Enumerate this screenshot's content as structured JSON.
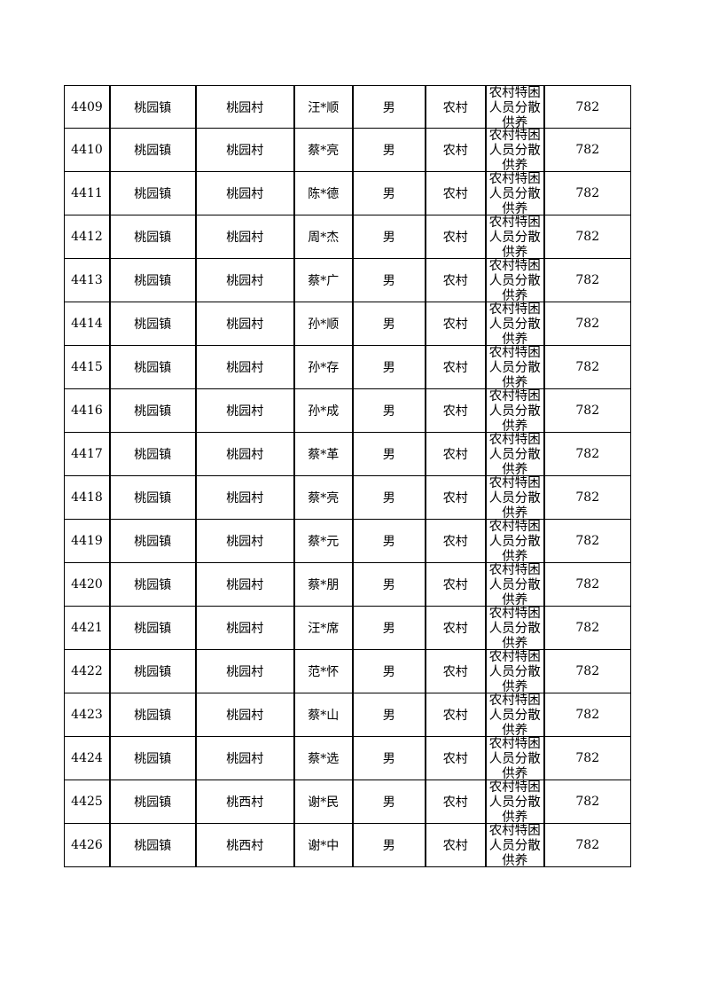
{
  "table": {
    "rows": [
      [
        4409,
        "桃园镇",
        "桃园村",
        "汪*顺",
        "男",
        "农村",
        "农村特困人员分散供养",
        782
      ],
      [
        4410,
        "桃园镇",
        "桃园村",
        "蔡*亮",
        "男",
        "农村",
        "农村特困人员分散供养",
        782
      ],
      [
        4411,
        "桃园镇",
        "桃园村",
        "陈*德",
        "男",
        "农村",
        "农村特困人员分散供养",
        782
      ],
      [
        4412,
        "桃园镇",
        "桃园村",
        "周*杰",
        "男",
        "农村",
        "农村特困人员分散供养",
        782
      ],
      [
        4413,
        "桃园镇",
        "桃园村",
        "蔡*广",
        "男",
        "农村",
        "农村特困人员分散供养",
        782
      ],
      [
        4414,
        "桃园镇",
        "桃园村",
        "孙*顺",
        "男",
        "农村",
        "农村特困人员分散供养",
        782
      ],
      [
        4415,
        "桃园镇",
        "桃园村",
        "孙*存",
        "男",
        "农村",
        "农村特困人员分散供养",
        782
      ],
      [
        4416,
        "桃园镇",
        "桃园村",
        "孙*成",
        "男",
        "农村",
        "农村特困人员分散供养",
        782
      ],
      [
        4417,
        "桃园镇",
        "桃园村",
        "蔡*革",
        "男",
        "农村",
        "农村特困人员分散供养",
        782
      ],
      [
        4418,
        "桃园镇",
        "桃园村",
        "蔡*亮",
        "男",
        "农村",
        "农村特困人员分散供养",
        782
      ],
      [
        4419,
        "桃园镇",
        "桃园村",
        "蔡*元",
        "男",
        "农村",
        "农村特困人员分散供养",
        782
      ],
      [
        4420,
        "桃园镇",
        "桃园村",
        "蔡*朋",
        "男",
        "农村",
        "农村特困人员分散供养",
        782
      ],
      [
        4421,
        "桃园镇",
        "桃园村",
        "汪*席",
        "男",
        "农村",
        "农村特困人员分散供养",
        782
      ],
      [
        4422,
        "桃园镇",
        "桃园村",
        "范*怀",
        "男",
        "农村",
        "农村特困人员分散供养",
        782
      ],
      [
        4423,
        "桃园镇",
        "桃园村",
        "蔡*山",
        "男",
        "农村",
        "农村特困人员分散供养",
        782
      ],
      [
        4424,
        "桃园镇",
        "桃园村",
        "蔡*选",
        "男",
        "农村",
        "农村特困人员分散供养",
        782
      ],
      [
        4425,
        "桃园镇",
        "桃西村",
        "谢*民",
        "男",
        "农村",
        "农村特困人员分散供养",
        782
      ],
      [
        4426,
        "桃园镇",
        "桃西村",
        "谢*中",
        "男",
        "农村",
        "农村特困人员分散供养",
        782
      ]
    ]
  }
}
